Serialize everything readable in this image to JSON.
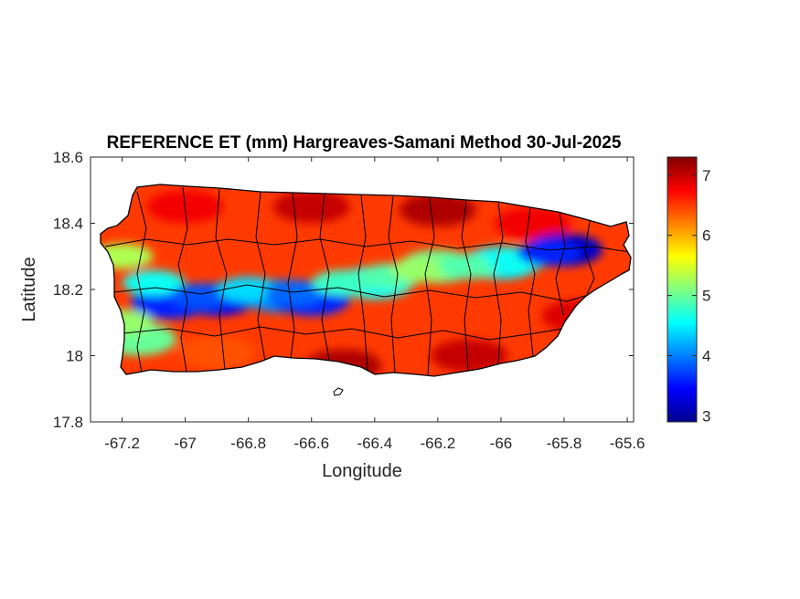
{
  "title": "REFERENCE ET (mm) Hargreaves-Samani Method  30-Jul-2025",
  "map": {
    "xlabel": "Longitude",
    "ylabel": "Latitude",
    "xlim": [
      -67.3,
      -65.58
    ],
    "ylim": [
      17.8,
      18.6
    ],
    "xticks": [
      -67.2,
      -67,
      -66.8,
      -66.6,
      -66.4,
      -66.2,
      -66,
      -65.8,
      -65.6
    ],
    "xtick_labels": [
      "-67.2",
      "-67",
      "-66.8",
      "-66.6",
      "-66.4",
      "-66.2",
      "-66",
      "-65.8",
      "-65.6"
    ],
    "yticks": [
      18.6,
      18.4,
      18.2,
      18,
      17.8
    ],
    "ytick_labels": [
      "18.6",
      "18.4",
      "18.2",
      "18",
      "17.8"
    ],
    "region": "Puerto Rico",
    "boundaries": "municipalities"
  },
  "colorbar": {
    "colormap": "jet",
    "min": 2.9,
    "max": 7.3,
    "ticks": [
      3,
      4,
      5,
      6,
      7
    ],
    "tick_labels": [
      "3",
      "4",
      "5",
      "6",
      "7"
    ]
  },
  "chart_data": {
    "type": "heatmap",
    "title": "REFERENCE ET (mm) Hargreaves-Samani Method  30-Jul-2025",
    "xlabel": "Longitude",
    "ylabel": "Latitude",
    "xlim": [
      -67.3,
      -65.58
    ],
    "ylim": [
      17.8,
      18.6
    ],
    "value_range": [
      2.9,
      7.3
    ],
    "colormap": "jet",
    "grid": false,
    "field_samples": [
      {
        "lon": -67.0,
        "lat": 18.45,
        "value": 6.8
      },
      {
        "lon": -66.6,
        "lat": 18.45,
        "value": 7.0
      },
      {
        "lon": -66.2,
        "lat": 18.44,
        "value": 7.1
      },
      {
        "lon": -65.9,
        "lat": 18.4,
        "value": 6.8
      },
      {
        "lon": -65.8,
        "lat": 18.32,
        "value": 3.2
      },
      {
        "lon": -67.05,
        "lat": 18.16,
        "value": 3.6
      },
      {
        "lon": -66.9,
        "lat": 18.17,
        "value": 3.4
      },
      {
        "lon": -66.7,
        "lat": 18.18,
        "value": 4.0
      },
      {
        "lon": -66.6,
        "lat": 18.17,
        "value": 3.6
      },
      {
        "lon": -66.4,
        "lat": 18.22,
        "value": 4.6
      },
      {
        "lon": -66.2,
        "lat": 18.27,
        "value": 5.0
      },
      {
        "lon": -66.0,
        "lat": 18.28,
        "value": 4.5
      },
      {
        "lon": -67.15,
        "lat": 18.05,
        "value": 5.0
      },
      {
        "lon": -66.9,
        "lat": 18.01,
        "value": 6.4
      },
      {
        "lon": -66.5,
        "lat": 17.97,
        "value": 7.1
      },
      {
        "lon": -66.1,
        "lat": 18.0,
        "value": 7.0
      },
      {
        "lon": -65.75,
        "lat": 18.12,
        "value": 6.9
      }
    ]
  }
}
